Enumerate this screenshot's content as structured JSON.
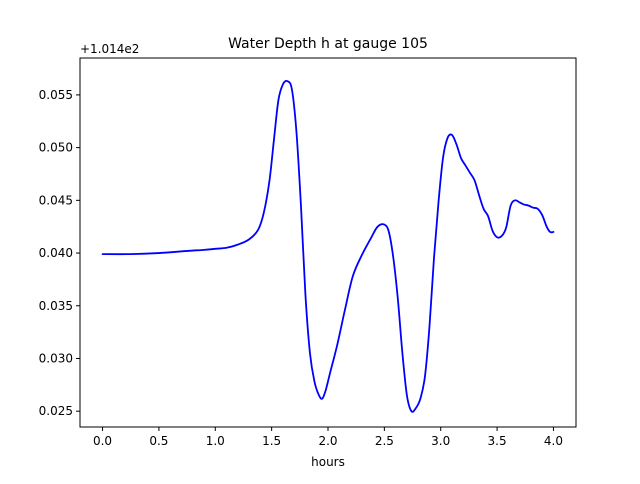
{
  "chart_data": {
    "type": "line",
    "title": "Water Depth h at gauge 105",
    "xlabel": "hours",
    "ylabel": "",
    "y_offset_label": "+1.014e2",
    "xlim": [
      -0.2,
      4.2
    ],
    "ylim": [
      0.0235,
      0.0585
    ],
    "grid": false,
    "xticks": [
      0.0,
      0.5,
      1.0,
      1.5,
      2.0,
      2.5,
      3.0,
      3.5,
      4.0
    ],
    "xtick_labels": [
      "0.0",
      "0.5",
      "1.0",
      "1.5",
      "2.0",
      "2.5",
      "3.0",
      "3.5",
      "4.0"
    ],
    "yticks": [
      0.025,
      0.03,
      0.035,
      0.04,
      0.045,
      0.05,
      0.055
    ],
    "ytick_labels": [
      "0.025",
      "0.030",
      "0.035",
      "0.040",
      "0.045",
      "0.050",
      "0.055"
    ],
    "series": [
      {
        "color": "#0000ff",
        "x": [
          0.0,
          0.25,
          0.5,
          0.75,
          0.9,
          1.0,
          1.1,
          1.2,
          1.3,
          1.38,
          1.43,
          1.48,
          1.52,
          1.56,
          1.6,
          1.64,
          1.68,
          1.72,
          1.76,
          1.8,
          1.84,
          1.88,
          1.92,
          1.95,
          1.98,
          2.02,
          2.08,
          2.15,
          2.22,
          2.3,
          2.38,
          2.44,
          2.5,
          2.54,
          2.58,
          2.62,
          2.66,
          2.7,
          2.74,
          2.78,
          2.82,
          2.86,
          2.9,
          2.94,
          2.98,
          3.02,
          3.06,
          3.1,
          3.14,
          3.18,
          3.22,
          3.26,
          3.3,
          3.34,
          3.38,
          3.42,
          3.46,
          3.5,
          3.54,
          3.58,
          3.62,
          3.66,
          3.7,
          3.74,
          3.78,
          3.82,
          3.86,
          3.9,
          3.94,
          3.97,
          4.0
        ],
        "y": [
          0.0399,
          0.0399,
          0.04,
          0.0402,
          0.0403,
          0.0404,
          0.0405,
          0.0408,
          0.0413,
          0.0422,
          0.0438,
          0.0468,
          0.0507,
          0.0545,
          0.056,
          0.0563,
          0.0555,
          0.0515,
          0.0445,
          0.036,
          0.0305,
          0.0278,
          0.0265,
          0.0262,
          0.027,
          0.0287,
          0.0312,
          0.0346,
          0.0378,
          0.0398,
          0.0414,
          0.0425,
          0.0427,
          0.042,
          0.0395,
          0.0356,
          0.0305,
          0.0265,
          0.025,
          0.0253,
          0.0262,
          0.0283,
          0.033,
          0.0395,
          0.0448,
          0.049,
          0.0509,
          0.0512,
          0.0503,
          0.049,
          0.0483,
          0.0476,
          0.0469,
          0.0455,
          0.0442,
          0.0435,
          0.0421,
          0.0415,
          0.0416,
          0.0424,
          0.0445,
          0.045,
          0.0448,
          0.0446,
          0.0445,
          0.0443,
          0.0442,
          0.0436,
          0.0425,
          0.042,
          0.042
        ]
      }
    ]
  }
}
